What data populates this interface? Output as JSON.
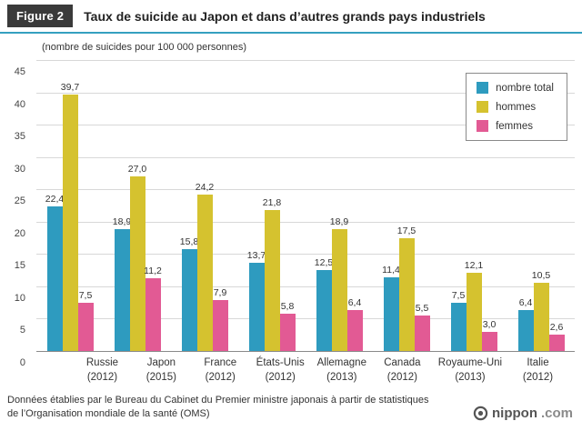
{
  "header": {
    "badge": "Figure 2",
    "title": "Taux de suicide au Japon et dans d’autres grands pays industriels"
  },
  "subtitle": "(nombre de suicides pour 100 000 personnes)",
  "chart_data": {
    "type": "bar",
    "title": "Taux de suicide au Japon et dans d’autres grands pays industriels",
    "unit_note": "(nombre de suicides pour 100 000 personnes)",
    "ylim": [
      0,
      45
    ],
    "ytick_step": 5,
    "grid": true,
    "legend_position": "top-right",
    "categories": [
      {
        "label": "Russie",
        "year": "(2012)"
      },
      {
        "label": "Japon",
        "year": "(2015)"
      },
      {
        "label": "France",
        "year": "(2012)"
      },
      {
        "label": "États-Unis",
        "year": "(2012)"
      },
      {
        "label": "Allemagne",
        "year": "(2013)"
      },
      {
        "label": "Canada",
        "year": "(2012)"
      },
      {
        "label": "Royaume-Uni",
        "year": "(2013)"
      },
      {
        "label": "Italie",
        "year": "(2012)"
      }
    ],
    "series": [
      {
        "name": "nombre total",
        "color": "#2e9bbf",
        "values": [
          22.4,
          18.9,
          15.8,
          13.7,
          12.5,
          11.4,
          7.5,
          6.4
        ],
        "labels": [
          "22,4",
          "18,9",
          "15,8",
          "13,7",
          "12,5",
          "11,4",
          "7,5",
          "6,4"
        ]
      },
      {
        "name": "hommes",
        "color": "#d5c22f",
        "values": [
          39.7,
          27.0,
          24.2,
          21.8,
          18.9,
          17.5,
          12.1,
          10.5
        ],
        "labels": [
          "39,7",
          "27,0",
          "24,2",
          "21,8",
          "18,9",
          "17,5",
          "12,1",
          "10,5"
        ]
      },
      {
        "name": "femmes",
        "color": "#e25a94",
        "values": [
          7.5,
          11.2,
          7.9,
          5.8,
          6.4,
          5.5,
          3.0,
          2.6
        ],
        "labels": [
          "7,5",
          "11,2",
          "7,9",
          "5,8",
          "6,4",
          "5,5",
          "3,0",
          "2,6"
        ]
      }
    ]
  },
  "footer": {
    "source": "Données établies par le Bureau du Cabinet du Premier ministre japonais à partir de statistiques de l’Organisation mondiale de la santé (OMS)",
    "logo_text": "nippon",
    "logo_suffix": ".com"
  }
}
